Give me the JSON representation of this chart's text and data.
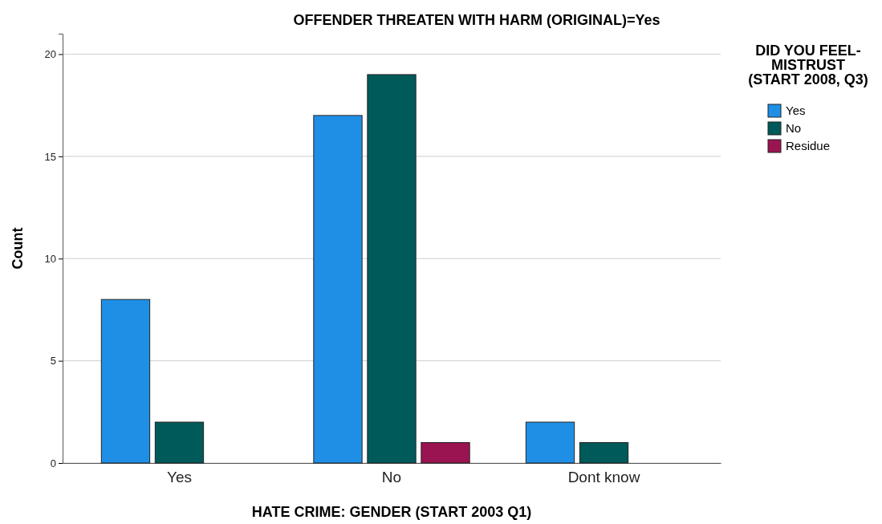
{
  "chart_data": {
    "type": "bar",
    "title": "OFFENDER THREATEN WITH HARM (ORIGINAL)=Yes",
    "xlabel": "HATE CRIME: GENDER (START 2003 Q1)",
    "ylabel": "Count",
    "legend_title": "DID YOU FEEL- MISTRUST (START 2008, Q3)",
    "categories": [
      "Yes",
      "No",
      "Dont know"
    ],
    "series": [
      {
        "name": "Yes",
        "color": "#1f8fe6",
        "values": [
          8,
          17,
          2
        ]
      },
      {
        "name": "No",
        "color": "#005a5a",
        "values": [
          2,
          19,
          1
        ]
      },
      {
        "name": "Residue",
        "color": "#9b1452",
        "values": [
          null,
          1,
          null
        ]
      }
    ],
    "ylim": [
      0,
      21
    ],
    "yticks": [
      0,
      5,
      10,
      15,
      20
    ],
    "grid": "y",
    "legend": "right"
  }
}
